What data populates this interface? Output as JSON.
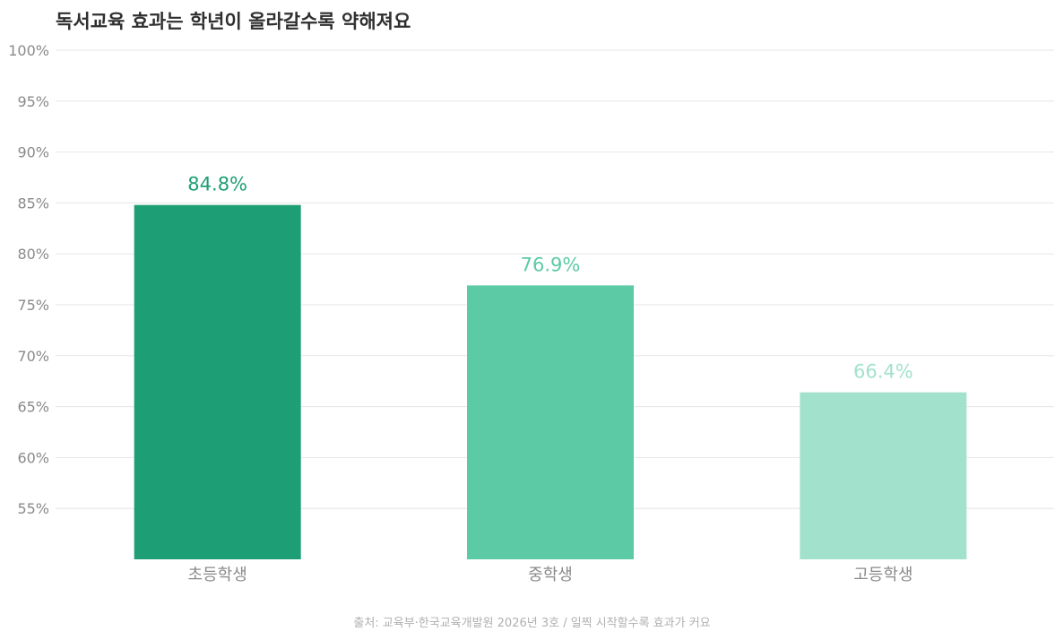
{
  "title": "독서교육 효과는 학년이 올라갈수록 약해져요",
  "source": "출처: 교육부·한국교육개발원 2026년 3호  /  일찍 시작할수록 효과가 커요",
  "colors": {
    "bars": [
      "#1e9e74",
      "#5ccaa5",
      "#a2e2cc"
    ],
    "grid": "#e6e6e6",
    "tick_text": "#8a8a8a"
  },
  "chart_data": {
    "type": "bar",
    "title": "독서교육 효과는 학년이 올라갈수록 약해져요",
    "xlabel": "",
    "ylabel": "",
    "categories": [
      "초등학생",
      "중학생",
      "고등학생"
    ],
    "values": [
      84.8,
      76.9,
      66.4
    ],
    "value_labels": [
      "84.8%",
      "76.9%",
      "66.4%"
    ],
    "ylim": [
      50,
      100
    ],
    "yticks": [
      55,
      60,
      65,
      70,
      75,
      80,
      85,
      90,
      95,
      100
    ],
    "ytick_labels": [
      "55%",
      "60%",
      "65%",
      "70%",
      "75%",
      "80%",
      "85%",
      "90%",
      "95%",
      "100%"
    ],
    "grid": true,
    "legend": "none"
  }
}
